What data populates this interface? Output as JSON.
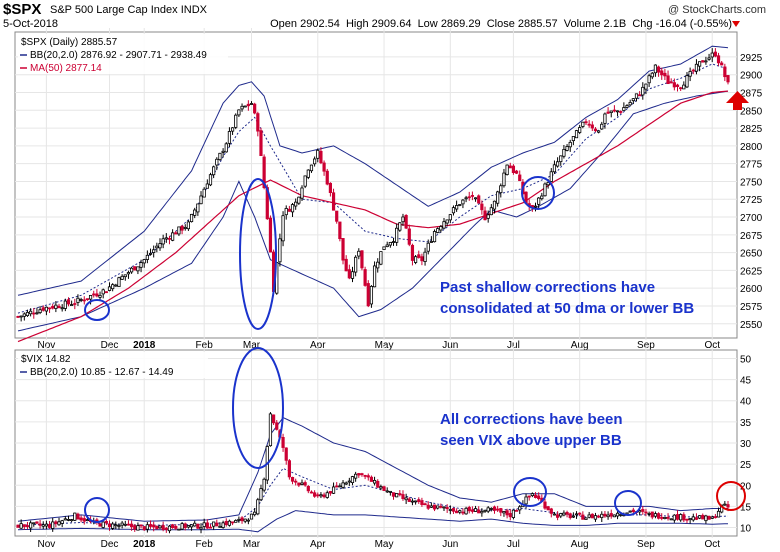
{
  "header": {
    "symbol": "$SPX",
    "name": "S&P 500 Large Cap Index",
    "exchange": "INDX",
    "date": "5-Oct-2018",
    "brand": "@ StockCharts.com",
    "open_label": "Open",
    "open": "2902.54",
    "high_label": "High",
    "high": "2909.64",
    "low_label": "Low",
    "low": "2869.29",
    "close_label": "Close",
    "close": "2885.57",
    "volume_label": "Volume",
    "volume": "2.1B",
    "chg_label": "Chg",
    "chg": "-16.04 (-0.55%)"
  },
  "colors": {
    "up": "#000000",
    "down": "#cc0033",
    "bb": "#1f2a8c",
    "ma": "#cc0033",
    "annotation": "#1a33cc",
    "alert": "#dd0000"
  },
  "top_panel": {
    "legend": [
      "$SPX (Daily) 2885.57",
      "BB(20,2.0) 2876.92 - 2907.71 - 2938.49",
      "MA(50) 2877.14"
    ],
    "note_lines": [
      "Past shallow corrections have",
      "consolidated at 50 dma or lower BB"
    ]
  },
  "bottom_panel": {
    "legend": [
      "$VIX 14.82",
      "BB(20,2.0) 10.85 - 12.67 - 14.49"
    ],
    "note_lines": [
      "All corrections have been",
      "seen VIX above upper BB"
    ]
  },
  "chart_data": [
    {
      "type": "candlestick",
      "title": "$SPX (Daily)",
      "series_names": [
        "$SPX",
        "BB(20,2.0) upper",
        "BB(20,2.0) middle",
        "BB(20,2.0) lower",
        "MA(50)"
      ],
      "ylim": [
        2530,
        2960
      ],
      "yticks": [
        2550,
        2575,
        2600,
        2625,
        2650,
        2675,
        2700,
        2725,
        2750,
        2775,
        2800,
        2825,
        2850,
        2875,
        2900,
        2925
      ],
      "x_labels": [
        "Nov",
        "Dec",
        "2018",
        "Feb",
        "Mar",
        "Apr",
        "May",
        "Jun",
        "Jul",
        "Aug",
        "Sep",
        "Oct"
      ],
      "close_anchors": [
        [
          0,
          2560
        ],
        [
          8,
          2572
        ],
        [
          18,
          2580
        ],
        [
          28,
          2598
        ],
        [
          40,
          2640
        ],
        [
          46,
          2668
        ],
        [
          54,
          2690
        ],
        [
          60,
          2750
        ],
        [
          66,
          2805
        ],
        [
          70,
          2850
        ],
        [
          74,
          2860
        ],
        [
          76,
          2825
        ],
        [
          79,
          2700
        ],
        [
          81,
          2600
        ],
        [
          84,
          2705
        ],
        [
          88,
          2720
        ],
        [
          92,
          2770
        ],
        [
          95,
          2790
        ],
        [
          98,
          2750
        ],
        [
          101,
          2695
        ],
        [
          103,
          2640
        ],
        [
          105,
          2610
        ],
        [
          108,
          2655
        ],
        [
          111,
          2580
        ],
        [
          113,
          2630
        ],
        [
          116,
          2660
        ],
        [
          119,
          2670
        ],
        [
          122,
          2700
        ],
        [
          125,
          2640
        ],
        [
          128,
          2640
        ],
        [
          132,
          2680
        ],
        [
          136,
          2700
        ],
        [
          140,
          2720
        ],
        [
          144,
          2730
        ],
        [
          148,
          2700
        ],
        [
          151,
          2720
        ],
        [
          155,
          2775
        ],
        [
          158,
          2760
        ],
        [
          161,
          2720
        ],
        [
          163,
          2710
        ],
        [
          165,
          2725
        ],
        [
          170,
          2770
        ],
        [
          175,
          2805
        ],
        [
          180,
          2835
        ],
        [
          184,
          2820
        ],
        [
          186,
          2845
        ],
        [
          191,
          2850
        ],
        [
          195,
          2865
        ],
        [
          198,
          2880
        ],
        [
          202,
          2910
        ],
        [
          206,
          2890
        ],
        [
          210,
          2885
        ],
        [
          214,
          2905
        ],
        [
          217,
          2920
        ],
        [
          221,
          2930
        ],
        [
          223,
          2910
        ],
        [
          225,
          2886
        ]
      ],
      "bb_upper_anchors": [
        [
          0,
          2590
        ],
        [
          20,
          2610
        ],
        [
          40,
          2680
        ],
        [
          55,
          2765
        ],
        [
          65,
          2860
        ],
        [
          70,
          2885
        ],
        [
          74,
          2890
        ],
        [
          78,
          2870
        ],
        [
          83,
          2800
        ],
        [
          90,
          2790
        ],
        [
          100,
          2800
        ],
        [
          110,
          2775
        ],
        [
          120,
          2745
        ],
        [
          130,
          2715
        ],
        [
          140,
          2735
        ],
        [
          150,
          2770
        ],
        [
          160,
          2790
        ],
        [
          170,
          2805
        ],
        [
          180,
          2840
        ],
        [
          190,
          2865
        ],
        [
          200,
          2905
        ],
        [
          210,
          2915
        ],
        [
          220,
          2940
        ],
        [
          225,
          2938
        ]
      ],
      "bb_middle_anchors": [
        [
          0,
          2565
        ],
        [
          20,
          2590
        ],
        [
          40,
          2640
        ],
        [
          55,
          2700
        ],
        [
          65,
          2785
        ],
        [
          70,
          2820
        ],
        [
          75,
          2840
        ],
        [
          80,
          2800
        ],
        [
          90,
          2725
        ],
        [
          100,
          2720
        ],
        [
          110,
          2680
        ],
        [
          120,
          2670
        ],
        [
          130,
          2665
        ],
        [
          140,
          2700
        ],
        [
          150,
          2730
        ],
        [
          160,
          2740
        ],
        [
          170,
          2760
        ],
        [
          180,
          2810
        ],
        [
          190,
          2840
        ],
        [
          200,
          2880
        ],
        [
          210,
          2895
        ],
        [
          220,
          2915
        ],
        [
          225,
          2908
        ]
      ],
      "bb_lower_anchors": [
        [
          0,
          2540
        ],
        [
          20,
          2560
        ],
        [
          40,
          2600
        ],
        [
          55,
          2635
        ],
        [
          65,
          2700
        ],
        [
          70,
          2750
        ],
        [
          75,
          2700
        ],
        [
          80,
          2640
        ],
        [
          90,
          2620
        ],
        [
          100,
          2600
        ],
        [
          108,
          2560
        ],
        [
          115,
          2570
        ],
        [
          125,
          2600
        ],
        [
          135,
          2645
        ],
        [
          145,
          2690
        ],
        [
          150,
          2710
        ],
        [
          158,
          2700
        ],
        [
          165,
          2715
        ],
        [
          175,
          2740
        ],
        [
          185,
          2790
        ],
        [
          195,
          2845
        ],
        [
          205,
          2860
        ],
        [
          215,
          2870
        ],
        [
          225,
          2877
        ]
      ],
      "ma50_anchors": [
        [
          0,
          2525
        ],
        [
          20,
          2560
        ],
        [
          35,
          2600
        ],
        [
          50,
          2650
        ],
        [
          60,
          2690
        ],
        [
          70,
          2730
        ],
        [
          80,
          2752
        ],
        [
          90,
          2730
        ],
        [
          100,
          2720
        ],
        [
          110,
          2710
        ],
        [
          120,
          2690
        ],
        [
          130,
          2685
        ],
        [
          140,
          2690
        ],
        [
          150,
          2705
        ],
        [
          160,
          2720
        ],
        [
          170,
          2750
        ],
        [
          180,
          2775
        ],
        [
          190,
          2800
        ],
        [
          200,
          2830
        ],
        [
          210,
          2860
        ],
        [
          220,
          2875
        ],
        [
          225,
          2877
        ]
      ]
    },
    {
      "type": "candlestick",
      "title": "$VIX",
      "series_names": [
        "$VIX",
        "BB(20,2.0) upper",
        "BB(20,2.0) middle",
        "BB(20,2.0) lower"
      ],
      "ylim": [
        8,
        52
      ],
      "yticks": [
        10,
        15,
        20,
        25,
        30,
        35,
        40,
        45,
        50
      ],
      "x_labels": [
        "Nov",
        "Dec",
        "2018",
        "Feb",
        "Mar",
        "Apr",
        "May",
        "Jun",
        "Jul",
        "Aug",
        "Sep",
        "Oct"
      ],
      "close_anchors": [
        [
          0,
          10.5
        ],
        [
          10,
          10.5
        ],
        [
          18,
          12.8
        ],
        [
          24,
          11.0
        ],
        [
          40,
          10.0
        ],
        [
          60,
          10.5
        ],
        [
          70,
          11.5
        ],
        [
          75,
          13
        ],
        [
          78,
          22
        ],
        [
          80,
          37
        ],
        [
          82,
          33
        ],
        [
          84,
          29
        ],
        [
          86,
          22
        ],
        [
          90,
          20
        ],
        [
          95,
          17
        ],
        [
          100,
          19
        ],
        [
          104,
          21
        ],
        [
          108,
          23
        ],
        [
          112,
          21
        ],
        [
          118,
          18
        ],
        [
          125,
          16
        ],
        [
          130,
          15
        ],
        [
          140,
          14
        ],
        [
          150,
          14
        ],
        [
          156,
          13
        ],
        [
          160,
          16
        ],
        [
          163,
          18
        ],
        [
          166,
          16
        ],
        [
          170,
          13
        ],
        [
          180,
          12.5
        ],
        [
          186,
          13
        ],
        [
          195,
          14
        ],
        [
          200,
          13
        ],
        [
          210,
          12.5
        ],
        [
          220,
          12
        ],
        [
          223,
          15
        ],
        [
          225,
          14.8
        ]
      ],
      "bb_upper_anchors": [
        [
          0,
          11.5
        ],
        [
          20,
          13.0
        ],
        [
          40,
          11.5
        ],
        [
          60,
          11.8
        ],
        [
          70,
          13.0
        ],
        [
          76,
          23
        ],
        [
          80,
          32
        ],
        [
          84,
          36
        ],
        [
          90,
          34
        ],
        [
          100,
          30
        ],
        [
          110,
          28
        ],
        [
          120,
          24
        ],
        [
          130,
          20
        ],
        [
          140,
          17
        ],
        [
          150,
          16
        ],
        [
          160,
          18
        ],
        [
          170,
          18
        ],
        [
          180,
          15
        ],
        [
          190,
          15
        ],
        [
          200,
          15
        ],
        [
          210,
          14
        ],
        [
          220,
          14.5
        ],
        [
          225,
          14.5
        ]
      ],
      "bb_middle_anchors": [
        [
          0,
          10.5
        ],
        [
          20,
          11.2
        ],
        [
          40,
          10.5
        ],
        [
          60,
          10.8
        ],
        [
          70,
          11.5
        ],
        [
          76,
          15
        ],
        [
          80,
          20
        ],
        [
          84,
          24
        ],
        [
          90,
          22
        ],
        [
          100,
          19
        ],
        [
          110,
          20
        ],
        [
          120,
          18
        ],
        [
          130,
          16
        ],
        [
          140,
          14.5
        ],
        [
          150,
          14
        ],
        [
          160,
          14.5
        ],
        [
          170,
          13.5
        ],
        [
          180,
          12.5
        ],
        [
          190,
          13
        ],
        [
          200,
          13
        ],
        [
          210,
          12.5
        ],
        [
          220,
          12.6
        ],
        [
          225,
          12.7
        ]
      ],
      "bb_lower_anchors": [
        [
          0,
          9.5
        ],
        [
          20,
          9.8
        ],
        [
          40,
          9.5
        ],
        [
          60,
          9.5
        ],
        [
          70,
          9.6
        ],
        [
          76,
          9.0
        ],
        [
          82,
          12
        ],
        [
          88,
          14
        ],
        [
          100,
          13
        ],
        [
          110,
          13
        ],
        [
          120,
          12.5
        ],
        [
          130,
          12
        ],
        [
          140,
          11.5
        ],
        [
          150,
          12
        ],
        [
          160,
          11
        ],
        [
          170,
          10.5
        ],
        [
          180,
          10.5
        ],
        [
          190,
          11
        ],
        [
          200,
          11
        ],
        [
          210,
          11
        ],
        [
          220,
          10.8
        ],
        [
          225,
          10.9
        ]
      ]
    }
  ]
}
